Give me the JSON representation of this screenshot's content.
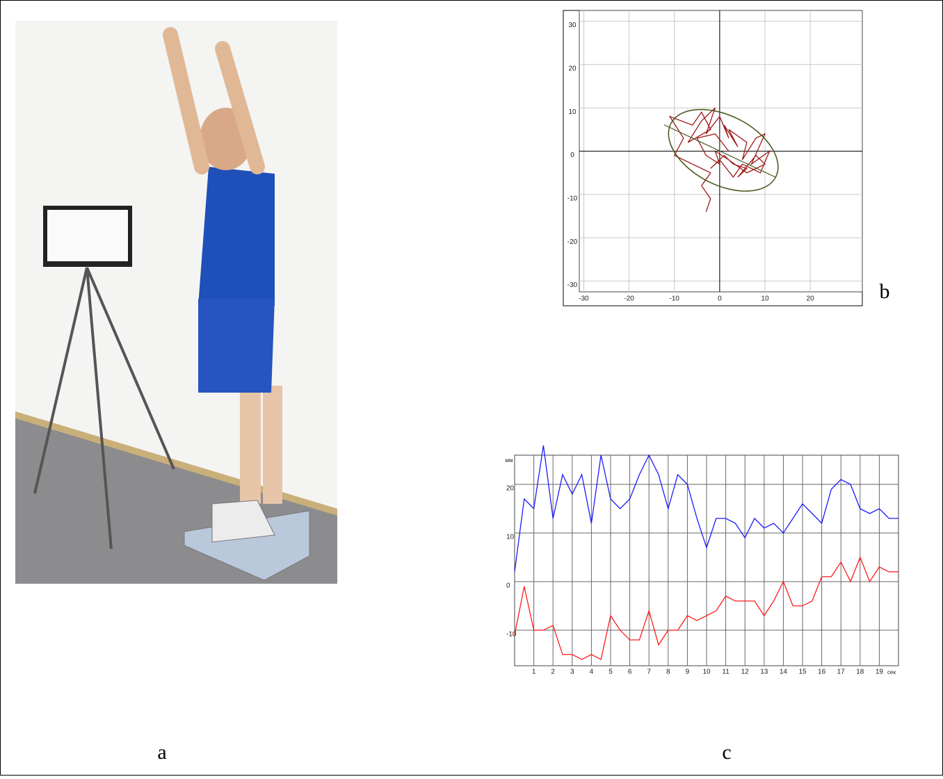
{
  "figure_labels": [
    "a",
    "b",
    "c"
  ],
  "chart_data": [
    {
      "type": "line",
      "x": [
        -3,
        -2,
        -4,
        -2,
        -6,
        -10,
        -8,
        -11,
        -6,
        -4,
        -2,
        -7,
        -4,
        -1,
        -3,
        0,
        2,
        1,
        4,
        2,
        6,
        5,
        8,
        10,
        7,
        11,
        9,
        5,
        3,
        0,
        -2,
        1,
        3,
        6,
        4,
        8,
        10,
        6,
        2,
        -1,
        0,
        -3,
        -5,
        -1,
        2
      ],
      "series": [
        {
          "color": "#a01818",
          "values": [
            -14,
            -11,
            -8,
            -5,
            -3,
            -1,
            3,
            8,
            6,
            9,
            5,
            2,
            7,
            10,
            4,
            8,
            3,
            6,
            1,
            5,
            2,
            -2,
            3,
            4,
            -3,
            0,
            -5,
            -3,
            -6,
            -2,
            -4,
            -1,
            -3,
            -4,
            -6,
            -1,
            -3,
            -5,
            -2,
            0,
            -3,
            -1,
            3,
            4,
            0
          ]
        }
      ],
      "ellipse": {
        "cx": 0.8,
        "cy": 0.2,
        "rx": 13,
        "ry": 8,
        "angle": -27,
        "color": "#4a5a20"
      },
      "axis_line": {
        "x": [
          -12.3,
          12.3
        ],
        "y": [
          6.1,
          -6
        ],
        "color": "#4a5a20"
      },
      "xlim": [
        -31,
        31.5
      ],
      "ylim": [
        -32.5,
        32.5
      ],
      "xticks": [
        -30,
        -20,
        -10,
        0,
        10,
        20
      ],
      "yticks": [
        30,
        20,
        10,
        0,
        -10,
        -20,
        -30
      ],
      "grid": true,
      "zero_axes": true
    },
    {
      "type": "line",
      "x": [
        0,
        0.5,
        1,
        1.5,
        2,
        2.5,
        3,
        3.5,
        4,
        4.5,
        5,
        5.5,
        6,
        6.5,
        7,
        7.5,
        8,
        8.5,
        9,
        9.5,
        10,
        10.5,
        11,
        11.5,
        12,
        12.5,
        13,
        13.5,
        14,
        14.5,
        15,
        15.5,
        16,
        16.5,
        17,
        17.5,
        18,
        18.5,
        19,
        19.5,
        20
      ],
      "series": [
        {
          "color": "#1a1aff",
          "values": [
            2,
            17,
            15,
            28,
            13,
            22,
            18,
            22,
            12,
            26,
            17,
            15,
            17,
            22,
            26,
            22,
            15,
            22,
            20,
            13,
            7,
            13,
            13,
            12,
            9,
            13,
            11,
            12,
            10,
            13,
            16,
            14,
            12,
            19,
            21,
            20,
            15,
            14,
            15,
            13,
            13
          ]
        },
        {
          "color": "#ff1a1a",
          "values": [
            -11,
            -1,
            -10,
            -10,
            -9,
            -15,
            -15,
            -16,
            -15,
            -16,
            -7,
            -10,
            -12,
            -12,
            -6,
            -13,
            -10,
            -10,
            -7,
            -8,
            -7,
            -6,
            -3,
            -4,
            -4,
            -4,
            -7,
            -4,
            0,
            -5,
            -5,
            -4,
            1,
            1,
            4,
            0,
            5,
            0,
            3,
            2,
            2
          ]
        }
      ],
      "y_label": "мм",
      "x_label": "сек",
      "xlim": [
        0,
        20
      ],
      "ylim": [
        -17.3,
        26
      ],
      "xticks": [
        1,
        2,
        3,
        4,
        5,
        6,
        7,
        8,
        9,
        10,
        11,
        12,
        13,
        14,
        15,
        16,
        17,
        18,
        19
      ],
      "yticks": [
        20,
        10,
        0,
        -10
      ],
      "grid": true,
      "zero_axes": false
    }
  ]
}
